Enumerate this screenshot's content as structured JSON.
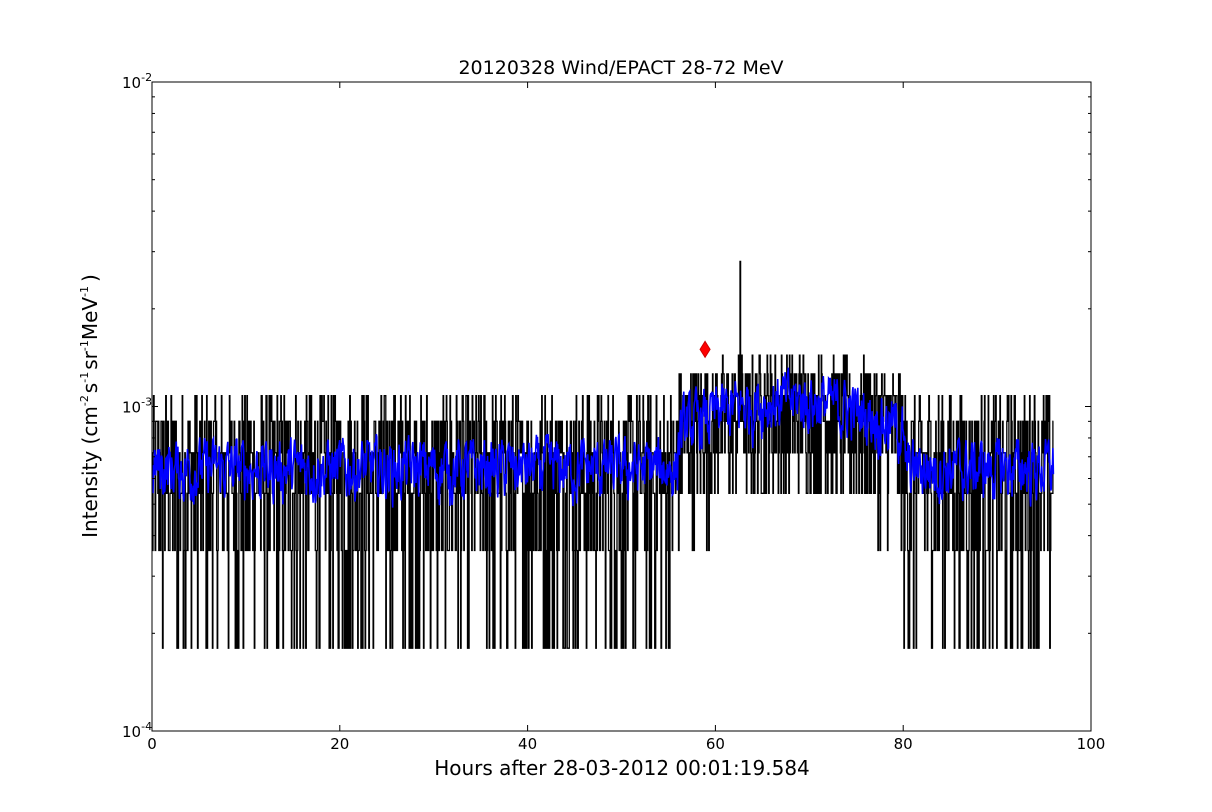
{
  "chart_data": {
    "type": "line",
    "title": "20120328 Wind/EPACT 28-72 MeV",
    "xlabel": "Hours after 28-03-2012 00:01:19.584",
    "ylabel": {
      "prefix": "Intensity (cm",
      "exp1": "-2",
      "s": "s",
      "exp2": "-1",
      "sr": "sr",
      "exp3": "-1",
      "mev": "MeV",
      "exp4": "-1",
      "suffix": ")"
    },
    "xlim": [
      0,
      100
    ],
    "ylim": [
      0.0001,
      0.01
    ],
    "yscale": "log",
    "grid": false,
    "x_ticks": [
      0,
      20,
      40,
      60,
      80,
      100
    ],
    "x_tick_labels": [
      "0",
      "20",
      "40",
      "60",
      "80",
      "100"
    ],
    "y_ticks": [
      {
        "value": 0.0001,
        "base": "10",
        "exp": "-4"
      },
      {
        "value": 0.001,
        "base": "10",
        "exp": "-3"
      },
      {
        "value": 0.01,
        "base": "10",
        "exp": "-2"
      }
    ],
    "series": [
      {
        "kind": "raw",
        "color": "#000000",
        "x_start": 0.05,
        "x_end": 96.0,
        "levels": [
          0.00018,
          0.00036,
          0.00054,
          0.00072,
          0.0009,
          0.00108,
          0.00126,
          0.00144,
          0.00162,
          0.0018,
          0.00198,
          0.00216,
          0.00234,
          0.0028
        ],
        "background_mean": 0.00062,
        "enhanced_mean": 0.00098,
        "enhanced_range": [
          56,
          80
        ],
        "max_value": 0.0028,
        "max_at": 62.7
      },
      {
        "kind": "smoothed",
        "color": "#0000ff",
        "x_start": 0.05,
        "x_end": 96.0,
        "background_mean": 0.00065,
        "peak_mean": 0.00105,
        "enhanced_range": [
          56,
          80
        ]
      }
    ],
    "marker": {
      "shape": "diamond",
      "color": "#ff0000",
      "x": 58.9,
      "y": 0.0015
    }
  }
}
